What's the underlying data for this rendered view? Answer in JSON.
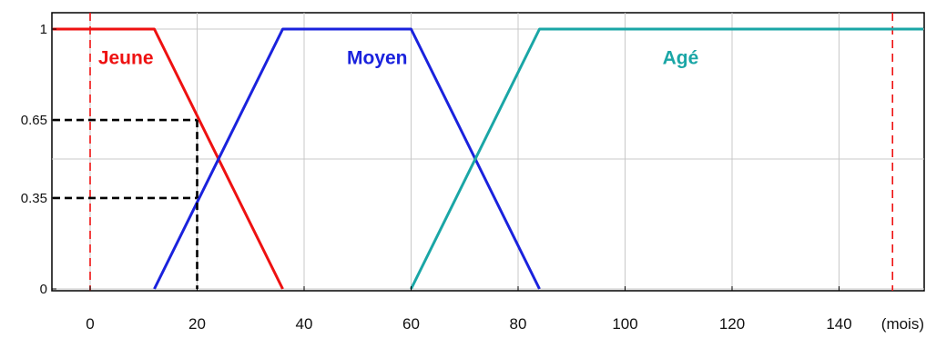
{
  "chart_data": {
    "type": "line",
    "title": "",
    "xlabel": "(mois)",
    "ylabel": "",
    "xlim": [
      -7,
      157
    ],
    "ylim": [
      0,
      1
    ],
    "x_ticks": [
      0,
      20,
      40,
      60,
      80,
      100,
      120,
      140
    ],
    "y_ticks": [
      {
        "value": 0,
        "label": "0"
      },
      {
        "value": 0.35,
        "label": "0.35"
      },
      {
        "value": 0.65,
        "label": "0.65"
      },
      {
        "value": 1,
        "label": "1"
      }
    ],
    "grid": true,
    "series": [
      {
        "name": "Jeune",
        "color": "#ee1111",
        "x": [
          -7,
          12,
          36
        ],
        "y": [
          1,
          1,
          0
        ]
      },
      {
        "name": "Moyen",
        "color": "#1a22dd",
        "x": [
          12,
          36,
          60,
          84
        ],
        "y": [
          0,
          1,
          1,
          0
        ]
      },
      {
        "name": "Agé",
        "color": "#1aa6a6",
        "x": [
          60,
          84,
          157
        ],
        "y": [
          0,
          1,
          1
        ]
      }
    ],
    "set_labels": [
      {
        "text": "Jeune",
        "color": "#ee1111",
        "x": 1.5,
        "y": 0.89
      },
      {
        "text": "Moyen",
        "color": "#1a22dd",
        "x": 48,
        "y": 0.89
      },
      {
        "text": "Agé",
        "color": "#1aa6a6",
        "x": 107,
        "y": 0.89
      }
    ],
    "reference_lines": [
      {
        "type": "vertical",
        "x": 0,
        "color": "#ee1111",
        "style": "dashed"
      },
      {
        "type": "vertical",
        "x": 150,
        "color": "#ee1111",
        "style": "dashed"
      }
    ],
    "annotation_lines": [
      {
        "from": [
          -7,
          0.65
        ],
        "to": [
          20,
          0.65
        ],
        "color": "#000000",
        "style": "dashed"
      },
      {
        "from": [
          -7,
          0.35
        ],
        "to": [
          20,
          0.35
        ],
        "color": "#000000",
        "style": "dashed"
      },
      {
        "from": [
          20,
          0.65
        ],
        "to": [
          20,
          0
        ],
        "color": "#000000",
        "style": "dashed"
      }
    ]
  }
}
